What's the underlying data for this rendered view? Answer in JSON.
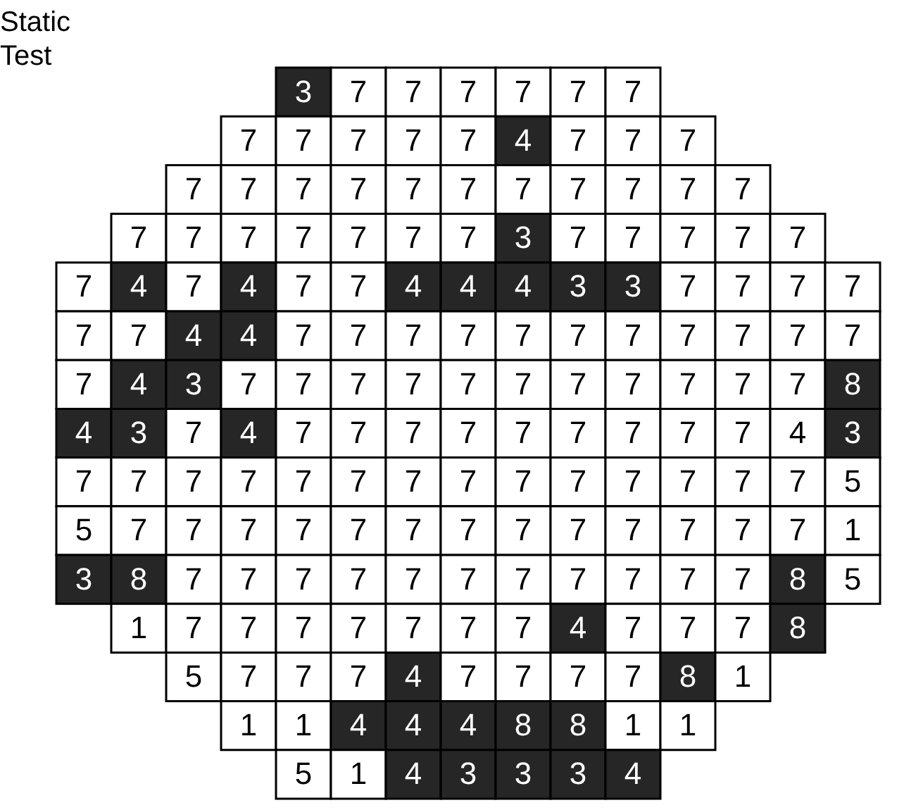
{
  "chart_data": {
    "type": "heatmap",
    "annotations": [
      "Static Test"
    ],
    "data_labels": true,
    "categories": [
      null,
      null,
      null,
      null,
      null,
      null,
      null,
      null,
      null,
      null,
      null,
      null,
      null,
      null,
      null
    ],
    "y_categories": [
      null,
      null,
      null,
      null,
      null,
      null,
      null,
      null,
      null,
      null,
      null,
      null,
      null,
      null,
      null
    ],
    "cells": [
      [
        null,
        null,
        null,
        null,
        3,
        7,
        7,
        7,
        7,
        7,
        7,
        null,
        null,
        null,
        null
      ],
      [
        null,
        null,
        null,
        7,
        7,
        7,
        7,
        7,
        4,
        7,
        7,
        7,
        null,
        null,
        null
      ],
      [
        null,
        null,
        7,
        7,
        7,
        7,
        7,
        7,
        7,
        7,
        7,
        7,
        7,
        null,
        null
      ],
      [
        null,
        7,
        7,
        7,
        7,
        7,
        7,
        7,
        3,
        7,
        7,
        7,
        7,
        7,
        null
      ],
      [
        7,
        4,
        7,
        4,
        7,
        7,
        4,
        4,
        4,
        3,
        3,
        7,
        7,
        7,
        7
      ],
      [
        7,
        7,
        4,
        4,
        7,
        7,
        7,
        7,
        7,
        7,
        7,
        7,
        7,
        7,
        7
      ],
      [
        7,
        4,
        3,
        7,
        7,
        7,
        7,
        7,
        7,
        7,
        7,
        7,
        7,
        7,
        8
      ],
      [
        4,
        3,
        7,
        4,
        7,
        7,
        7,
        7,
        7,
        7,
        7,
        7,
        7,
        4,
        3
      ],
      [
        7,
        7,
        7,
        7,
        7,
        7,
        7,
        7,
        7,
        7,
        7,
        7,
        7,
        7,
        5
      ],
      [
        5,
        7,
        7,
        7,
        7,
        7,
        7,
        7,
        7,
        7,
        7,
        7,
        7,
        7,
        1
      ],
      [
        3,
        8,
        7,
        7,
        7,
        7,
        7,
        7,
        7,
        7,
        7,
        7,
        7,
        8,
        5
      ],
      [
        null,
        1,
        7,
        7,
        7,
        7,
        7,
        7,
        7,
        4,
        7,
        7,
        7,
        8,
        null
      ],
      [
        null,
        null,
        5,
        7,
        7,
        7,
        4,
        7,
        7,
        7,
        7,
        8,
        1,
        null,
        null
      ],
      [
        null,
        null,
        null,
        1,
        1,
        4,
        4,
        4,
        8,
        8,
        1,
        1,
        null,
        null,
        null
      ],
      [
        null,
        null,
        null,
        null,
        5,
        1,
        4,
        3,
        3,
        3,
        4,
        null,
        null,
        null,
        null
      ]
    ],
    "colors": [
      [
        null,
        null,
        null,
        null,
        "#262626",
        "#ffffff",
        "#ffffff",
        "#ffffff",
        "#ffffff",
        "#ffffff",
        "#ffffff",
        null,
        null,
        null,
        null
      ],
      [
        null,
        null,
        null,
        "#ffffff",
        "#ffffff",
        "#ffffff",
        "#ffffff",
        "#ffffff",
        "#262626",
        "#ffffff",
        "#ffffff",
        "#ffffff",
        null,
        null,
        null
      ],
      [
        null,
        null,
        "#ffffff",
        "#ffffff",
        "#ffffff",
        "#ffffff",
        "#ffffff",
        "#ffffff",
        "#ffffff",
        "#ffffff",
        "#ffffff",
        "#ffffff",
        "#ffffff",
        null,
        null
      ],
      [
        null,
        "#ffffff",
        "#ffffff",
        "#ffffff",
        "#ffffff",
        "#ffffff",
        "#ffffff",
        "#ffffff",
        "#262626",
        "#ffffff",
        "#ffffff",
        "#ffffff",
        "#ffffff",
        "#ffffff",
        null
      ],
      [
        "#ffffff",
        "#262626",
        "#ffffff",
        "#262626",
        "#ffffff",
        "#ffffff",
        "#262626",
        "#262626",
        "#262626",
        "#262626",
        "#262626",
        "#ffffff",
        "#ffffff",
        "#ffffff",
        "#ffffff"
      ],
      [
        "#ffffff",
        "#ffffff",
        "#262626",
        "#262626",
        "#ffffff",
        "#ffffff",
        "#ffffff",
        "#ffffff",
        "#ffffff",
        "#ffffff",
        "#ffffff",
        "#ffffff",
        "#ffffff",
        "#ffffff",
        "#ffffff"
      ],
      [
        "#ffffff",
        "#262626",
        "#262626",
        "#ffffff",
        "#ffffff",
        "#ffffff",
        "#ffffff",
        "#ffffff",
        "#ffffff",
        "#ffffff",
        "#ffffff",
        "#ffffff",
        "#ffffff",
        "#ffffff",
        "#262626"
      ],
      [
        "#262626",
        "#262626",
        "#ffffff",
        "#262626",
        "#ffffff",
        "#ffffff",
        "#ffffff",
        "#ffffff",
        "#ffffff",
        "#ffffff",
        "#ffffff",
        "#ffffff",
        "#ffffff",
        "#ffffff",
        "#262626"
      ],
      [
        "#ffffff",
        "#ffffff",
        "#ffffff",
        "#ffffff",
        "#ffffff",
        "#ffffff",
        "#ffffff",
        "#ffffff",
        "#ffffff",
        "#ffffff",
        "#ffffff",
        "#ffffff",
        "#ffffff",
        "#ffffff",
        "#ffffff"
      ],
      [
        "#ffffff",
        "#ffffff",
        "#ffffff",
        "#ffffff",
        "#ffffff",
        "#ffffff",
        "#ffffff",
        "#ffffff",
        "#ffffff",
        "#ffffff",
        "#ffffff",
        "#ffffff",
        "#ffffff",
        "#ffffff",
        "#ffffff"
      ],
      [
        "#262626",
        "#262626",
        "#ffffff",
        "#ffffff",
        "#ffffff",
        "#ffffff",
        "#ffffff",
        "#ffffff",
        "#ffffff",
        "#ffffff",
        "#ffffff",
        "#ffffff",
        "#ffffff",
        "#262626",
        "#ffffff"
      ],
      [
        null,
        "#ffffff",
        "#ffffff",
        "#ffffff",
        "#ffffff",
        "#ffffff",
        "#ffffff",
        "#ffffff",
        "#ffffff",
        "#262626",
        "#ffffff",
        "#ffffff",
        "#ffffff",
        "#262626",
        null
      ],
      [
        null,
        null,
        "#ffffff",
        "#ffffff",
        "#ffffff",
        "#ffffff",
        "#262626",
        "#ffffff",
        "#ffffff",
        "#ffffff",
        "#ffffff",
        "#262626",
        "#ffffff",
        null,
        null
      ],
      [
        null,
        null,
        null,
        "#ffffff",
        "#ffffff",
        "#262626",
        "#262626",
        "#262626",
        "#262626",
        "#262626",
        "#ffffff",
        "#ffffff",
        null,
        null,
        null
      ],
      [
        null,
        null,
        null,
        null,
        "#ffffff",
        "#ffffff",
        "#262626",
        "#262626",
        "#262626",
        "#262626",
        "#262626",
        null,
        null,
        null,
        null
      ]
    ]
  }
}
